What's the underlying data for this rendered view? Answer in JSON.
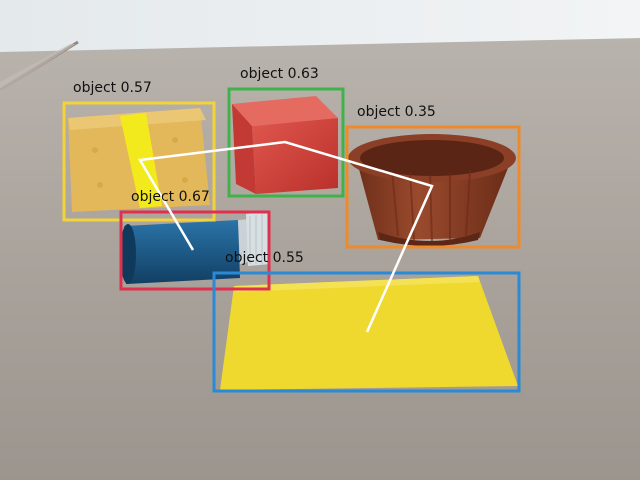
{
  "detections": [
    {
      "label": "object",
      "score": "0.57",
      "color": "#f2d33a"
    },
    {
      "label": "object",
      "score": "0.63",
      "color": "#3fb24a"
    },
    {
      "label": "object",
      "score": "0.35",
      "color": "#ee8a2a"
    },
    {
      "label": "object",
      "score": "0.67",
      "color": "#e0304f"
    },
    {
      "label": "object",
      "score": "0.55",
      "color": "#2a8ad6"
    }
  ],
  "colors": {
    "wall": "#e9edf0",
    "table": "#a9a29b",
    "sponge": "#e6bb5c",
    "sponge_band": "#f3ea1d",
    "red_cube": "#d6443d",
    "blue_bottle": "#1b5b8a",
    "bottle_cap": "#d8dfe2",
    "cup": "#8a3f26",
    "yellow_cloth": "#f0d92e",
    "trajectory": "#ffffff"
  },
  "icons": [
    "yellow-sponge",
    "red-cube",
    "brown-cup",
    "blue-bottle",
    "yellow-cloth"
  ]
}
